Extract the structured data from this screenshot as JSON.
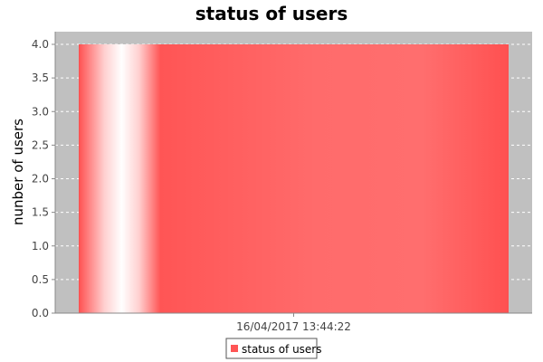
{
  "chart_data": {
    "type": "bar",
    "title": "status of users",
    "xlabel": "",
    "ylabel": "nunber of users",
    "categories": [
      "16/04/2017 13:44:22"
    ],
    "series": [
      {
        "name": "status of users",
        "values": [
          4.0
        ]
      }
    ],
    "ylim": [
      0,
      4.0
    ],
    "yticks": [
      "0.0",
      "0.5",
      "1.0",
      "1.5",
      "2.0",
      "2.5",
      "3.0",
      "3.5",
      "4.0"
    ],
    "grid": true,
    "legend_position": "bottom-center",
    "colors": {
      "bar": "#ff5555",
      "plot_background": "#c0c0c0",
      "gridline": "#ffffff"
    }
  }
}
